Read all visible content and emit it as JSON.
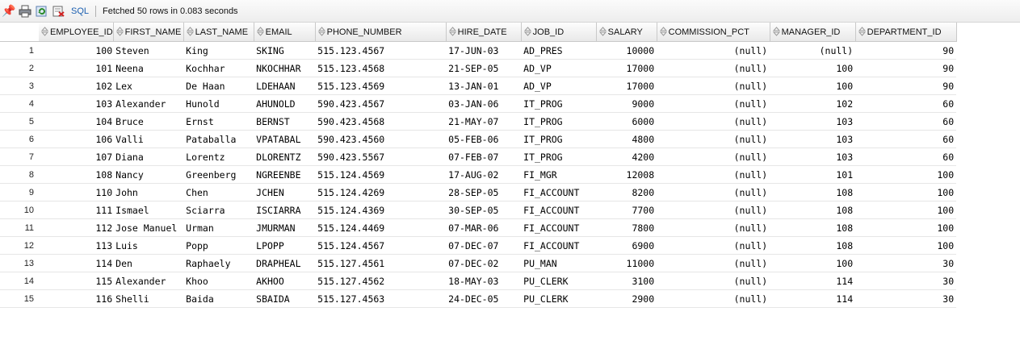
{
  "toolbar": {
    "sql_label": "SQL",
    "status": "Fetched 50 rows in 0.083 seconds",
    "icons": [
      "pin-icon",
      "printer-icon",
      "refresh-icon",
      "export-icon"
    ]
  },
  "columns": [
    "EMPLOYEE_ID",
    "FIRST_NAME",
    "LAST_NAME",
    "EMAIL",
    "PHONE_NUMBER",
    "HIRE_DATE",
    "JOB_ID",
    "SALARY",
    "COMMISSION_PCT",
    "MANAGER_ID",
    "DEPARTMENT_ID"
  ],
  "rows": [
    {
      "n": "1",
      "id": "100",
      "first": "Steven",
      "last": "King",
      "email": "SKING",
      "phone": "515.123.4567",
      "hire": "17-JUN-03",
      "job": "AD_PRES",
      "salary": "10000",
      "comm": "(null)",
      "mgr": "(null)",
      "dept": "90"
    },
    {
      "n": "2",
      "id": "101",
      "first": "Neena",
      "last": "Kochhar",
      "email": "NKOCHHAR",
      "phone": "515.123.4568",
      "hire": "21-SEP-05",
      "job": "AD_VP",
      "salary": "17000",
      "comm": "(null)",
      "mgr": "100",
      "dept": "90"
    },
    {
      "n": "3",
      "id": "102",
      "first": "Lex",
      "last": "De Haan",
      "email": "LDEHAAN",
      "phone": "515.123.4569",
      "hire": "13-JAN-01",
      "job": "AD_VP",
      "salary": "17000",
      "comm": "(null)",
      "mgr": "100",
      "dept": "90"
    },
    {
      "n": "4",
      "id": "103",
      "first": "Alexander",
      "last": "Hunold",
      "email": "AHUNOLD",
      "phone": "590.423.4567",
      "hire": "03-JAN-06",
      "job": "IT_PROG",
      "salary": "9000",
      "comm": "(null)",
      "mgr": "102",
      "dept": "60"
    },
    {
      "n": "5",
      "id": "104",
      "first": "Bruce",
      "last": "Ernst",
      "email": "BERNST",
      "phone": "590.423.4568",
      "hire": "21-MAY-07",
      "job": "IT_PROG",
      "salary": "6000",
      "comm": "(null)",
      "mgr": "103",
      "dept": "60"
    },
    {
      "n": "6",
      "id": "106",
      "first": "Valli",
      "last": "Pataballa",
      "email": "VPATABAL",
      "phone": "590.423.4560",
      "hire": "05-FEB-06",
      "job": "IT_PROG",
      "salary": "4800",
      "comm": "(null)",
      "mgr": "103",
      "dept": "60"
    },
    {
      "n": "7",
      "id": "107",
      "first": "Diana",
      "last": "Lorentz",
      "email": "DLORENTZ",
      "phone": "590.423.5567",
      "hire": "07-FEB-07",
      "job": "IT_PROG",
      "salary": "4200",
      "comm": "(null)",
      "mgr": "103",
      "dept": "60"
    },
    {
      "n": "8",
      "id": "108",
      "first": "Nancy",
      "last": "Greenberg",
      "email": "NGREENBE",
      "phone": "515.124.4569",
      "hire": "17-AUG-02",
      "job": "FI_MGR",
      "salary": "12008",
      "comm": "(null)",
      "mgr": "101",
      "dept": "100"
    },
    {
      "n": "9",
      "id": "110",
      "first": "John",
      "last": "Chen",
      "email": "JCHEN",
      "phone": "515.124.4269",
      "hire": "28-SEP-05",
      "job": "FI_ACCOUNT",
      "salary": "8200",
      "comm": "(null)",
      "mgr": "108",
      "dept": "100"
    },
    {
      "n": "10",
      "id": "111",
      "first": "Ismael",
      "last": "Sciarra",
      "email": "ISCIARRA",
      "phone": "515.124.4369",
      "hire": "30-SEP-05",
      "job": "FI_ACCOUNT",
      "salary": "7700",
      "comm": "(null)",
      "mgr": "108",
      "dept": "100"
    },
    {
      "n": "11",
      "id": "112",
      "first": "Jose Manuel",
      "last": "Urman",
      "email": "JMURMAN",
      "phone": "515.124.4469",
      "hire": "07-MAR-06",
      "job": "FI_ACCOUNT",
      "salary": "7800",
      "comm": "(null)",
      "mgr": "108",
      "dept": "100"
    },
    {
      "n": "12",
      "id": "113",
      "first": "Luis",
      "last": "Popp",
      "email": "LPOPP",
      "phone": "515.124.4567",
      "hire": "07-DEC-07",
      "job": "FI_ACCOUNT",
      "salary": "6900",
      "comm": "(null)",
      "mgr": "108",
      "dept": "100"
    },
    {
      "n": "13",
      "id": "114",
      "first": "Den",
      "last": "Raphaely",
      "email": "DRAPHEAL",
      "phone": "515.127.4561",
      "hire": "07-DEC-02",
      "job": "PU_MAN",
      "salary": "11000",
      "comm": "(null)",
      "mgr": "100",
      "dept": "30"
    },
    {
      "n": "14",
      "id": "115",
      "first": "Alexander",
      "last": "Khoo",
      "email": "AKHOO",
      "phone": "515.127.4562",
      "hire": "18-MAY-03",
      "job": "PU_CLERK",
      "salary": "3100",
      "comm": "(null)",
      "mgr": "114",
      "dept": "30"
    },
    {
      "n": "15",
      "id": "116",
      "first": "Shelli",
      "last": "Baida",
      "email": "SBAIDA",
      "phone": "515.127.4563",
      "hire": "24-DEC-05",
      "job": "PU_CLERK",
      "salary": "2900",
      "comm": "(null)",
      "mgr": "114",
      "dept": "30"
    }
  ]
}
